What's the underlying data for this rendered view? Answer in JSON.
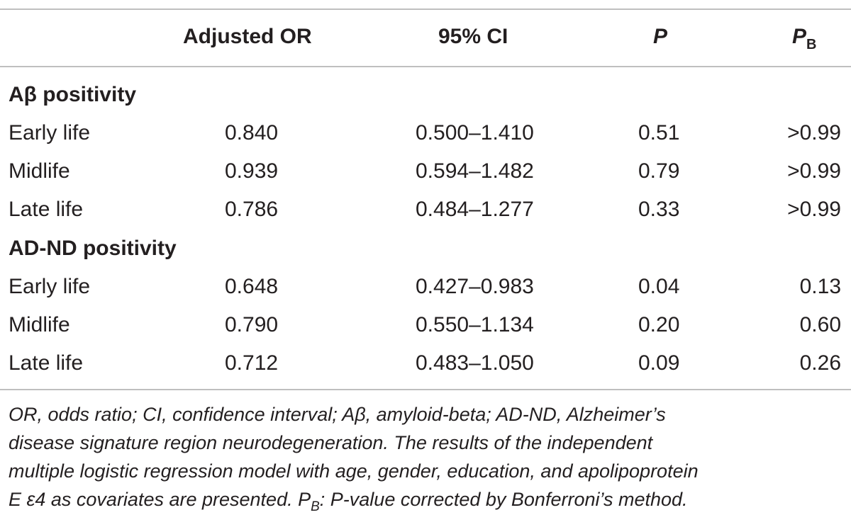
{
  "header": {
    "col1": "",
    "col2": "Adjusted OR",
    "col3": "95% CI",
    "col4": "P",
    "col5_main": "P",
    "col5_sub": "B"
  },
  "sections": [
    {
      "title": "Aβ positivity",
      "rows": [
        {
          "label": "Early life",
          "or": "0.840",
          "ci": "0.500–1.410",
          "p": "0.51",
          "pb": ">0.99"
        },
        {
          "label": "Midlife",
          "or": "0.939",
          "ci": "0.594–1.482",
          "p": "0.79",
          "pb": ">0.99"
        },
        {
          "label": "Late life",
          "or": "0.786",
          "ci": "0.484–1.277",
          "p": "0.33",
          "pb": ">0.99"
        }
      ]
    },
    {
      "title": "AD-ND positivity",
      "rows": [
        {
          "label": "Early life",
          "or": "0.648",
          "ci": "0.427–0.983",
          "p": "0.04",
          "pb": "0.13"
        },
        {
          "label": "Midlife",
          "or": "0.790",
          "ci": "0.550–1.134",
          "p": "0.20",
          "pb": "0.60"
        },
        {
          "label": "Late life",
          "or": "0.712",
          "ci": "0.483–1.050",
          "p": "0.09",
          "pb": "0.26"
        }
      ]
    }
  ],
  "footnote": {
    "line1": "OR, odds ratio; CI, confidence interval; Aβ, amyloid-beta; AD-ND, Alzheimer’s",
    "line2": "disease signature region neurodegeneration. The results of the independent",
    "line3": "multiple logistic regression model with age, gender, education, and apolipoprotein",
    "line4_a": "E ε4 as covariates are presented. P",
    "line4_sub": "B",
    "line4_b": ": P-value corrected by Bonferroni’s method."
  }
}
